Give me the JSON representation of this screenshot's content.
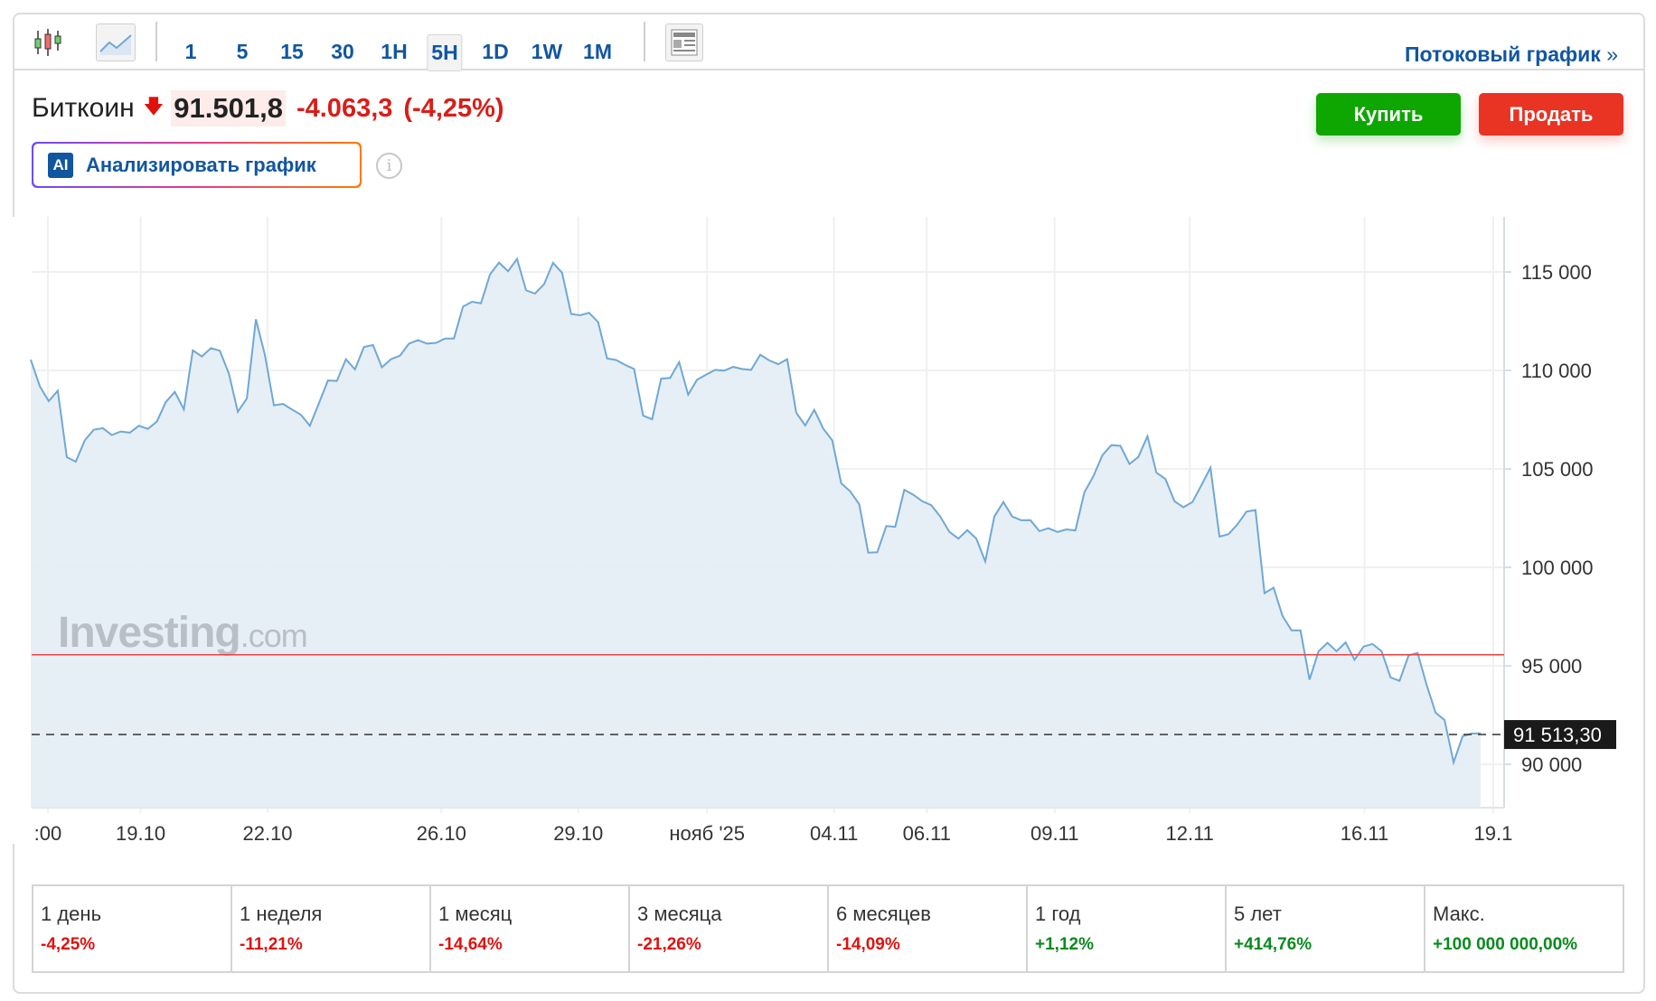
{
  "toolbar": {
    "chart_types": [
      {
        "name": "candlestick-icon"
      },
      {
        "name": "area-chart-icon",
        "active": true
      }
    ],
    "intervals": [
      {
        "label": "1"
      },
      {
        "label": "5"
      },
      {
        "label": "15"
      },
      {
        "label": "30"
      },
      {
        "label": "1H"
      },
      {
        "label": "5H",
        "active": true
      },
      {
        "label": "1D"
      },
      {
        "label": "1W"
      },
      {
        "label": "1M"
      }
    ],
    "stream_link": "Потоковый график",
    "stream_chevron": "»"
  },
  "instrument": {
    "name": "Биткоин",
    "price": "91.501,8",
    "change": "-4.063,3",
    "change_pct": "(-4,25%)",
    "direction_icon": "arrow-down-icon"
  },
  "ai_button": {
    "logo": "AI",
    "label": "Анализировать график"
  },
  "info_icon": "i",
  "actions": {
    "buy": "Купить",
    "sell": "Продать"
  },
  "colors": {
    "line": "#6fa8d6",
    "fill": "#e4edf5",
    "prev_close": "#f04040",
    "buy": "#0ea600",
    "sell": "#e93323",
    "accent": "#1256a0"
  },
  "chart_data": {
    "type": "area",
    "watermark": {
      "brand": "Investing",
      "suffix": ".com"
    },
    "ylim": [
      87800,
      117800
    ],
    "yticks": [
      {
        "v": 90000,
        "label": "90 000"
      },
      {
        "v": 95000,
        "label": "95 000"
      },
      {
        "v": 100000,
        "label": "100 000"
      },
      {
        "v": 105000,
        "label": "105 000"
      },
      {
        "v": 110000,
        "label": "110 000"
      },
      {
        "v": 115000,
        "label": "115 000"
      }
    ],
    "xticks": [
      {
        "label": ":00",
        "at_index": 1.9
      },
      {
        "label": "19.10",
        "at_index": 12.2
      },
      {
        "label": "22.10",
        "at_index": 26.3
      },
      {
        "label": "26.10",
        "at_index": 45.6
      },
      {
        "label": "29.10",
        "at_index": 60.8
      },
      {
        "label": "нояб '25",
        "at_index": 75.1
      },
      {
        "label": "04.11",
        "at_index": 89.2
      },
      {
        "label": "06.11",
        "at_index": 99.5
      },
      {
        "label": "09.11",
        "at_index": 113.7
      },
      {
        "label": "12.11",
        "at_index": 128.7
      },
      {
        "label": "16.11",
        "at_index": 148.1
      },
      {
        "label": "19.1",
        "at_index": 162.4
      }
    ],
    "prev_close": 95565,
    "last_price": 91513.3,
    "last_price_label": "91 513,30",
    "values": [
      110550,
      109200,
      108440,
      108970,
      105600,
      105370,
      106450,
      106990,
      107070,
      106720,
      106900,
      106840,
      107190,
      107030,
      107400,
      108390,
      108910,
      108020,
      111020,
      110710,
      111130,
      111000,
      109840,
      107900,
      108580,
      112600,
      110800,
      108230,
      108300,
      108020,
      107750,
      107190,
      108330,
      109490,
      109470,
      110570,
      110050,
      111190,
      111290,
      110160,
      110570,
      110750,
      111360,
      111540,
      111360,
      111400,
      111620,
      111620,
      113240,
      113490,
      113410,
      114880,
      115480,
      115040,
      115660,
      114070,
      113900,
      114380,
      115460,
      114960,
      112870,
      112800,
      112930,
      112450,
      110610,
      110530,
      110280,
      110070,
      107710,
      107520,
      109580,
      109620,
      110420,
      108770,
      109530,
      109780,
      110030,
      109990,
      110180,
      110070,
      110030,
      110800,
      110510,
      110320,
      110570,
      107860,
      107210,
      108000,
      107050,
      106450,
      104270,
      103860,
      103200,
      100750,
      100770,
      102100,
      102060,
      103940,
      103690,
      103360,
      103160,
      102580,
      101810,
      101460,
      101890,
      101460,
      100300,
      102580,
      103320,
      102580,
      102390,
      102400,
      101840,
      101990,
      101800,
      101930,
      101880,
      103810,
      104630,
      105700,
      106210,
      106170,
      105250,
      105610,
      106660,
      104810,
      104490,
      103360,
      103050,
      103320,
      104180,
      105060,
      101560,
      101680,
      102190,
      102830,
      102910,
      98690,
      98970,
      97540,
      96800,
      96800,
      94300,
      95740,
      96170,
      95740,
      96190,
      95310,
      95980,
      96110,
      95740,
      94410,
      94240,
      95530,
      95660,
      94040,
      92620,
      92250,
      90100,
      91430,
      91560,
      91580
    ]
  },
  "performance": [
    {
      "period": "1 день",
      "value": "-4,25%",
      "sign": "neg"
    },
    {
      "period": "1 неделя",
      "value": "-11,21%",
      "sign": "neg"
    },
    {
      "period": "1 месяц",
      "value": "-14,64%",
      "sign": "neg"
    },
    {
      "period": "3 месяца",
      "value": "-21,26%",
      "sign": "neg"
    },
    {
      "period": "6 месяцев",
      "value": "-14,09%",
      "sign": "neg"
    },
    {
      "period": "1 год",
      "value": "+1,12%",
      "sign": "pos"
    },
    {
      "period": "5 лет",
      "value": "+414,76%",
      "sign": "pos"
    },
    {
      "period": "Макс.",
      "value": "+100 000 000,00%",
      "sign": "pos"
    }
  ]
}
